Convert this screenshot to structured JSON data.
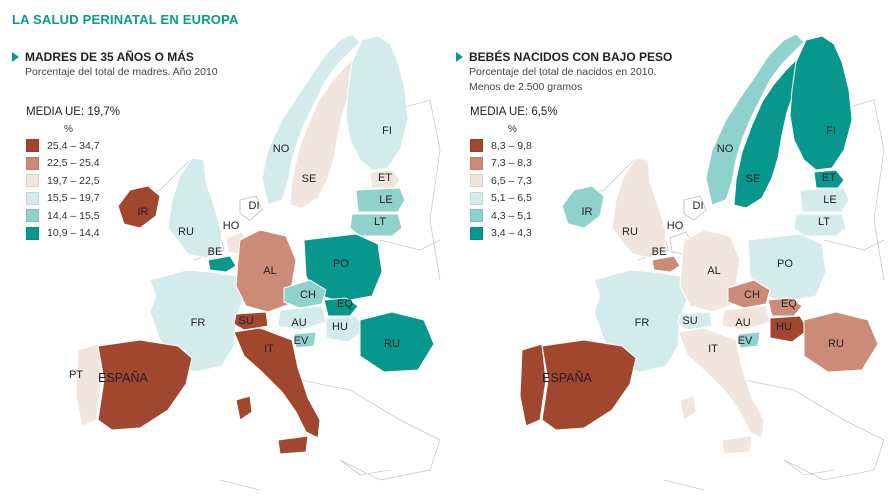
{
  "title": "LA SALUD PERINATAL EN EUROPA",
  "palette": {
    "c1": "#a14730",
    "c2": "#cc8a78",
    "c3": "#f1e5dd",
    "c4": "#d3eceb",
    "c5": "#8fd1cc",
    "c6": "#07978d",
    "nodata": "#ffffff",
    "outline": "#c9c9c9"
  },
  "left": {
    "title": "MADRES DE 35 AÑOS O MÁS",
    "subtitle1": "Porcentaje del total de madres. Año 2010",
    "subtitle2": "",
    "media": "MEDIA UE:  19,7%",
    "unit": "%",
    "legend": [
      "25,4 – 34,7",
      "22,5 – 25,4",
      "19,7 – 22,5",
      "15,5 – 19,7",
      "14,4 – 15,5",
      "10,9 – 14,4"
    ],
    "labels": {
      "FI": "FI",
      "NO": "NO",
      "SE": "SE",
      "ET": "ET",
      "LE": "LE",
      "LT": "LT",
      "DI": "DI",
      "IR": "IR",
      "RU": "RU",
      "HO": "HO",
      "BE": "BE",
      "AL": "AL",
      "PO": "PO",
      "CH": "CH",
      "EQ": "EQ",
      "FR": "FR",
      "SU": "SU",
      "AU": "AU",
      "HU": "HU",
      "RUM": "RU",
      "EV": "EV",
      "IT": "IT",
      "PT": "PT",
      "ES": "ESPAÑA"
    },
    "classes": {
      "FI": 4,
      "NO": 4,
      "SE": 3,
      "ET": 3,
      "LE": 5,
      "LT": 5,
      "DI": 0,
      "IR": 1,
      "RU": 4,
      "HO": 3,
      "BE": 6,
      "AL": 2,
      "PO": 6,
      "CH": 5,
      "EQ": 6,
      "FR": 4,
      "SU": 1,
      "AU": 4,
      "HU": 4,
      "RUM": 6,
      "EV": 5,
      "IT": 1,
      "PT": 3,
      "ES": 1
    }
  },
  "right": {
    "title": "BEBÉS NACIDOS CON BAJO PESO",
    "subtitle1": "Porcentaje del total de nacidos en 2010.",
    "subtitle2": "Menos de 2.500 gramos",
    "media": "MEDIA UE: 6,5%",
    "unit": "%",
    "legend": [
      "8,3 – 9,8",
      "7,3 – 8,3",
      "6,5 – 7,3",
      "5,1 – 6,5",
      "4,3 – 5,1",
      "3,4 – 4,3"
    ],
    "labels": {
      "FI": "FI",
      "NO": "NO",
      "SE": "SE",
      "ET": "ET",
      "LE": "LE",
      "LT": "LT",
      "DI": "DI",
      "IR": "IR",
      "RU": "RU",
      "HO": "HO",
      "BE": "BE",
      "AL": "AL",
      "PO": "PO",
      "CH": "CH",
      "EQ": "EQ",
      "FR": "FR",
      "SU": "SU",
      "AU": "AU",
      "HU": "HU",
      "RUM": "RU",
      "EV": "EV",
      "IT": "IT",
      "PT": "",
      "ES": "ESPAÑA"
    },
    "classes": {
      "FI": 6,
      "NO": 5,
      "SE": 6,
      "ET": 6,
      "LE": 4,
      "LT": 4,
      "DI": 0,
      "IR": 5,
      "RU": 3,
      "HO": 0,
      "BE": 2,
      "AL": 3,
      "PO": 4,
      "CH": 2,
      "EQ": 2,
      "FR": 4,
      "SU": 4,
      "AU": 3,
      "HU": 1,
      "RUM": 2,
      "EV": 5,
      "IT": 3,
      "PT": 1,
      "ES": 1
    }
  }
}
